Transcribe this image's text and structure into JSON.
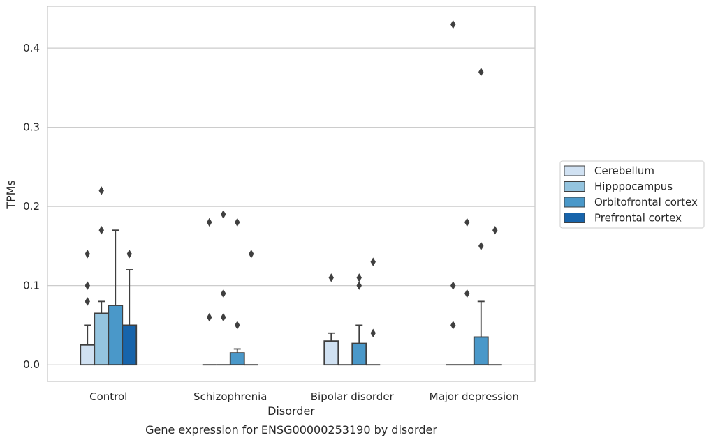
{
  "chart_data": {
    "type": "box",
    "caption": "Gene expression for ENSG00000253190 by disorder",
    "xlabel": "Disorder",
    "ylabel": "TPMs",
    "ylim": [
      -0.021,
      0.453
    ],
    "yticks": [
      0.0,
      0.1,
      0.2,
      0.3,
      0.4
    ],
    "ytick_labels": [
      "0.0",
      "0.1",
      "0.2",
      "0.3",
      "0.4"
    ],
    "grid": "horizontal",
    "legend_position": "right",
    "categories": [
      "Control",
      "Schizophrenia",
      "Bipolar disorder",
      "Major depression"
    ],
    "series": [
      {
        "name": "Cerebellum",
        "color": "#d0e1f2",
        "boxes": [
          {
            "q1": 0.0,
            "q3": 0.025,
            "whisker_low": 0.0,
            "whisker_high": 0.05,
            "outliers": [
              0.14,
              0.1,
              0.08
            ]
          },
          {
            "q1": 0.0,
            "q3": 0.0,
            "whisker_low": 0.0,
            "whisker_high": 0.0,
            "outliers": [
              0.18,
              0.06
            ]
          },
          {
            "q1": 0.0,
            "q3": 0.03,
            "whisker_low": 0.0,
            "whisker_high": 0.04,
            "outliers": [
              0.11
            ]
          },
          {
            "q1": 0.0,
            "q3": 0.0,
            "whisker_low": 0.0,
            "whisker_high": 0.0,
            "outliers": [
              0.43,
              0.1,
              0.05
            ]
          }
        ]
      },
      {
        "name": "Hipppocampus",
        "color": "#94c4df",
        "boxes": [
          {
            "q1": 0.0,
            "q3": 0.065,
            "whisker_low": 0.0,
            "whisker_high": 0.08,
            "outliers": [
              0.22,
              0.17
            ]
          },
          {
            "q1": 0.0,
            "q3": 0.0,
            "whisker_low": 0.0,
            "whisker_high": 0.0,
            "outliers": [
              0.19,
              0.09,
              0.06
            ]
          },
          {
            "q1": 0.0,
            "q3": 0.0,
            "whisker_low": 0.0,
            "whisker_high": 0.0,
            "outliers": []
          },
          {
            "q1": 0.0,
            "q3": 0.0,
            "whisker_low": 0.0,
            "whisker_high": 0.0,
            "outliers": [
              0.18,
              0.09
            ]
          }
        ]
      },
      {
        "name": "Orbitofrontal cortex",
        "color": "#4a98c9",
        "boxes": [
          {
            "q1": 0.0,
            "q3": 0.075,
            "whisker_low": 0.0,
            "whisker_high": 0.17,
            "outliers": []
          },
          {
            "q1": 0.0,
            "q3": 0.015,
            "whisker_low": 0.0,
            "whisker_high": 0.02,
            "outliers": [
              0.18,
              0.05
            ]
          },
          {
            "q1": 0.0,
            "q3": 0.027,
            "whisker_low": 0.0,
            "whisker_high": 0.05,
            "outliers": [
              0.11,
              0.1
            ]
          },
          {
            "q1": 0.0,
            "q3": 0.035,
            "whisker_low": 0.0,
            "whisker_high": 0.08,
            "outliers": [
              0.37,
              0.15
            ]
          }
        ]
      },
      {
        "name": "Prefrontal cortex",
        "color": "#1764ab",
        "boxes": [
          {
            "q1": 0.0,
            "q3": 0.05,
            "whisker_low": 0.0,
            "whisker_high": 0.12,
            "outliers": [
              0.14
            ]
          },
          {
            "q1": 0.0,
            "q3": 0.0,
            "whisker_low": 0.0,
            "whisker_high": 0.0,
            "outliers": [
              0.14
            ]
          },
          {
            "q1": 0.0,
            "q3": 0.0,
            "whisker_low": 0.0,
            "whisker_high": 0.0,
            "outliers": [
              0.13,
              0.04
            ]
          },
          {
            "q1": 0.0,
            "q3": 0.0,
            "whisker_low": 0.0,
            "whisker_high": 0.0,
            "outliers": [
              0.17
            ]
          }
        ]
      }
    ],
    "colors": {
      "edge": "#3f3f3f",
      "grid": "#cccccc",
      "frame": "#cccccc",
      "text": "#262626"
    }
  }
}
